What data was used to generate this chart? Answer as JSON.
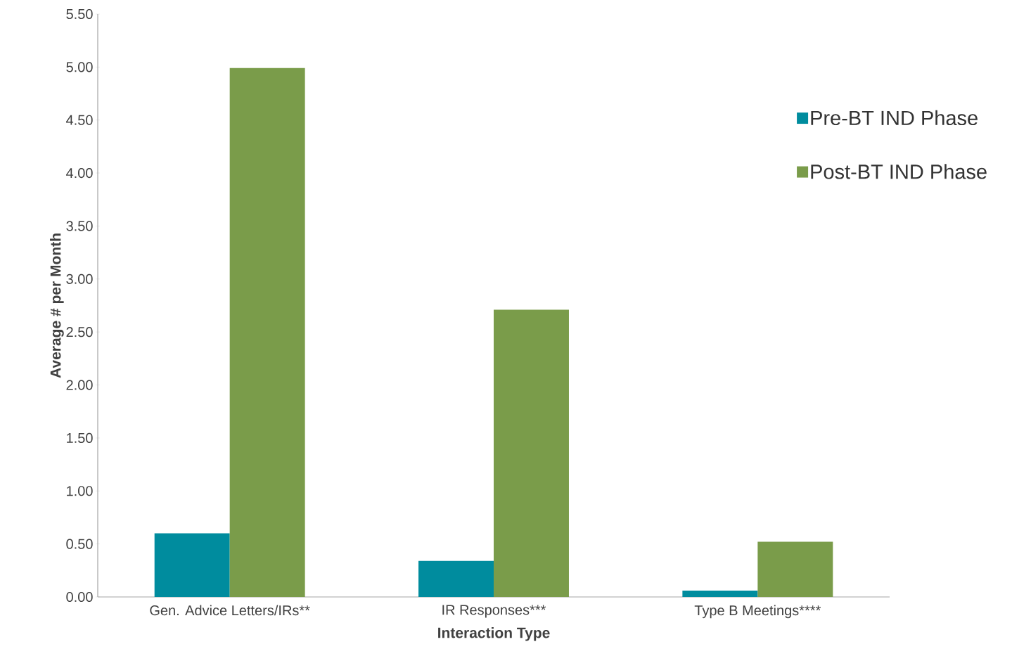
{
  "chart_data": {
    "type": "bar",
    "xlabel": "Interaction Type",
    "ylabel": "Average # per Month",
    "categories": [
      "Gen. Advice Letters/IRs**",
      "IR Responses***",
      "Type B Meetings****"
    ],
    "series": [
      {
        "name": "Pre-BT IND Phase",
        "color": "#008c9e",
        "values": [
          0.6,
          0.34,
          0.06
        ]
      },
      {
        "name": "Post-BT IND Phase",
        "color": "#7a9c4a",
        "values": [
          4.99,
          2.71,
          0.52
        ]
      }
    ],
    "ylim": [
      0,
      5.5
    ],
    "yticks": [
      {
        "value": 0,
        "label": "0.00"
      },
      {
        "value": 0.5,
        "label": "0.50"
      },
      {
        "value": 1,
        "label": "1.00"
      },
      {
        "value": 1.5,
        "label": "1.50"
      },
      {
        "value": 2,
        "label": "2.00"
      },
      {
        "value": 2.5,
        "label": "2.50"
      },
      {
        "value": 3,
        "label": "3.00"
      },
      {
        "value": 3.5,
        "label": "3.50"
      },
      {
        "value": 4,
        "label": "4.00"
      },
      {
        "value": 4.5,
        "label": "4.50"
      },
      {
        "value": 5,
        "label": "5.00"
      },
      {
        "value": 5.5,
        "label": "5.50"
      }
    ],
    "legend": "top right",
    "grid": false
  }
}
